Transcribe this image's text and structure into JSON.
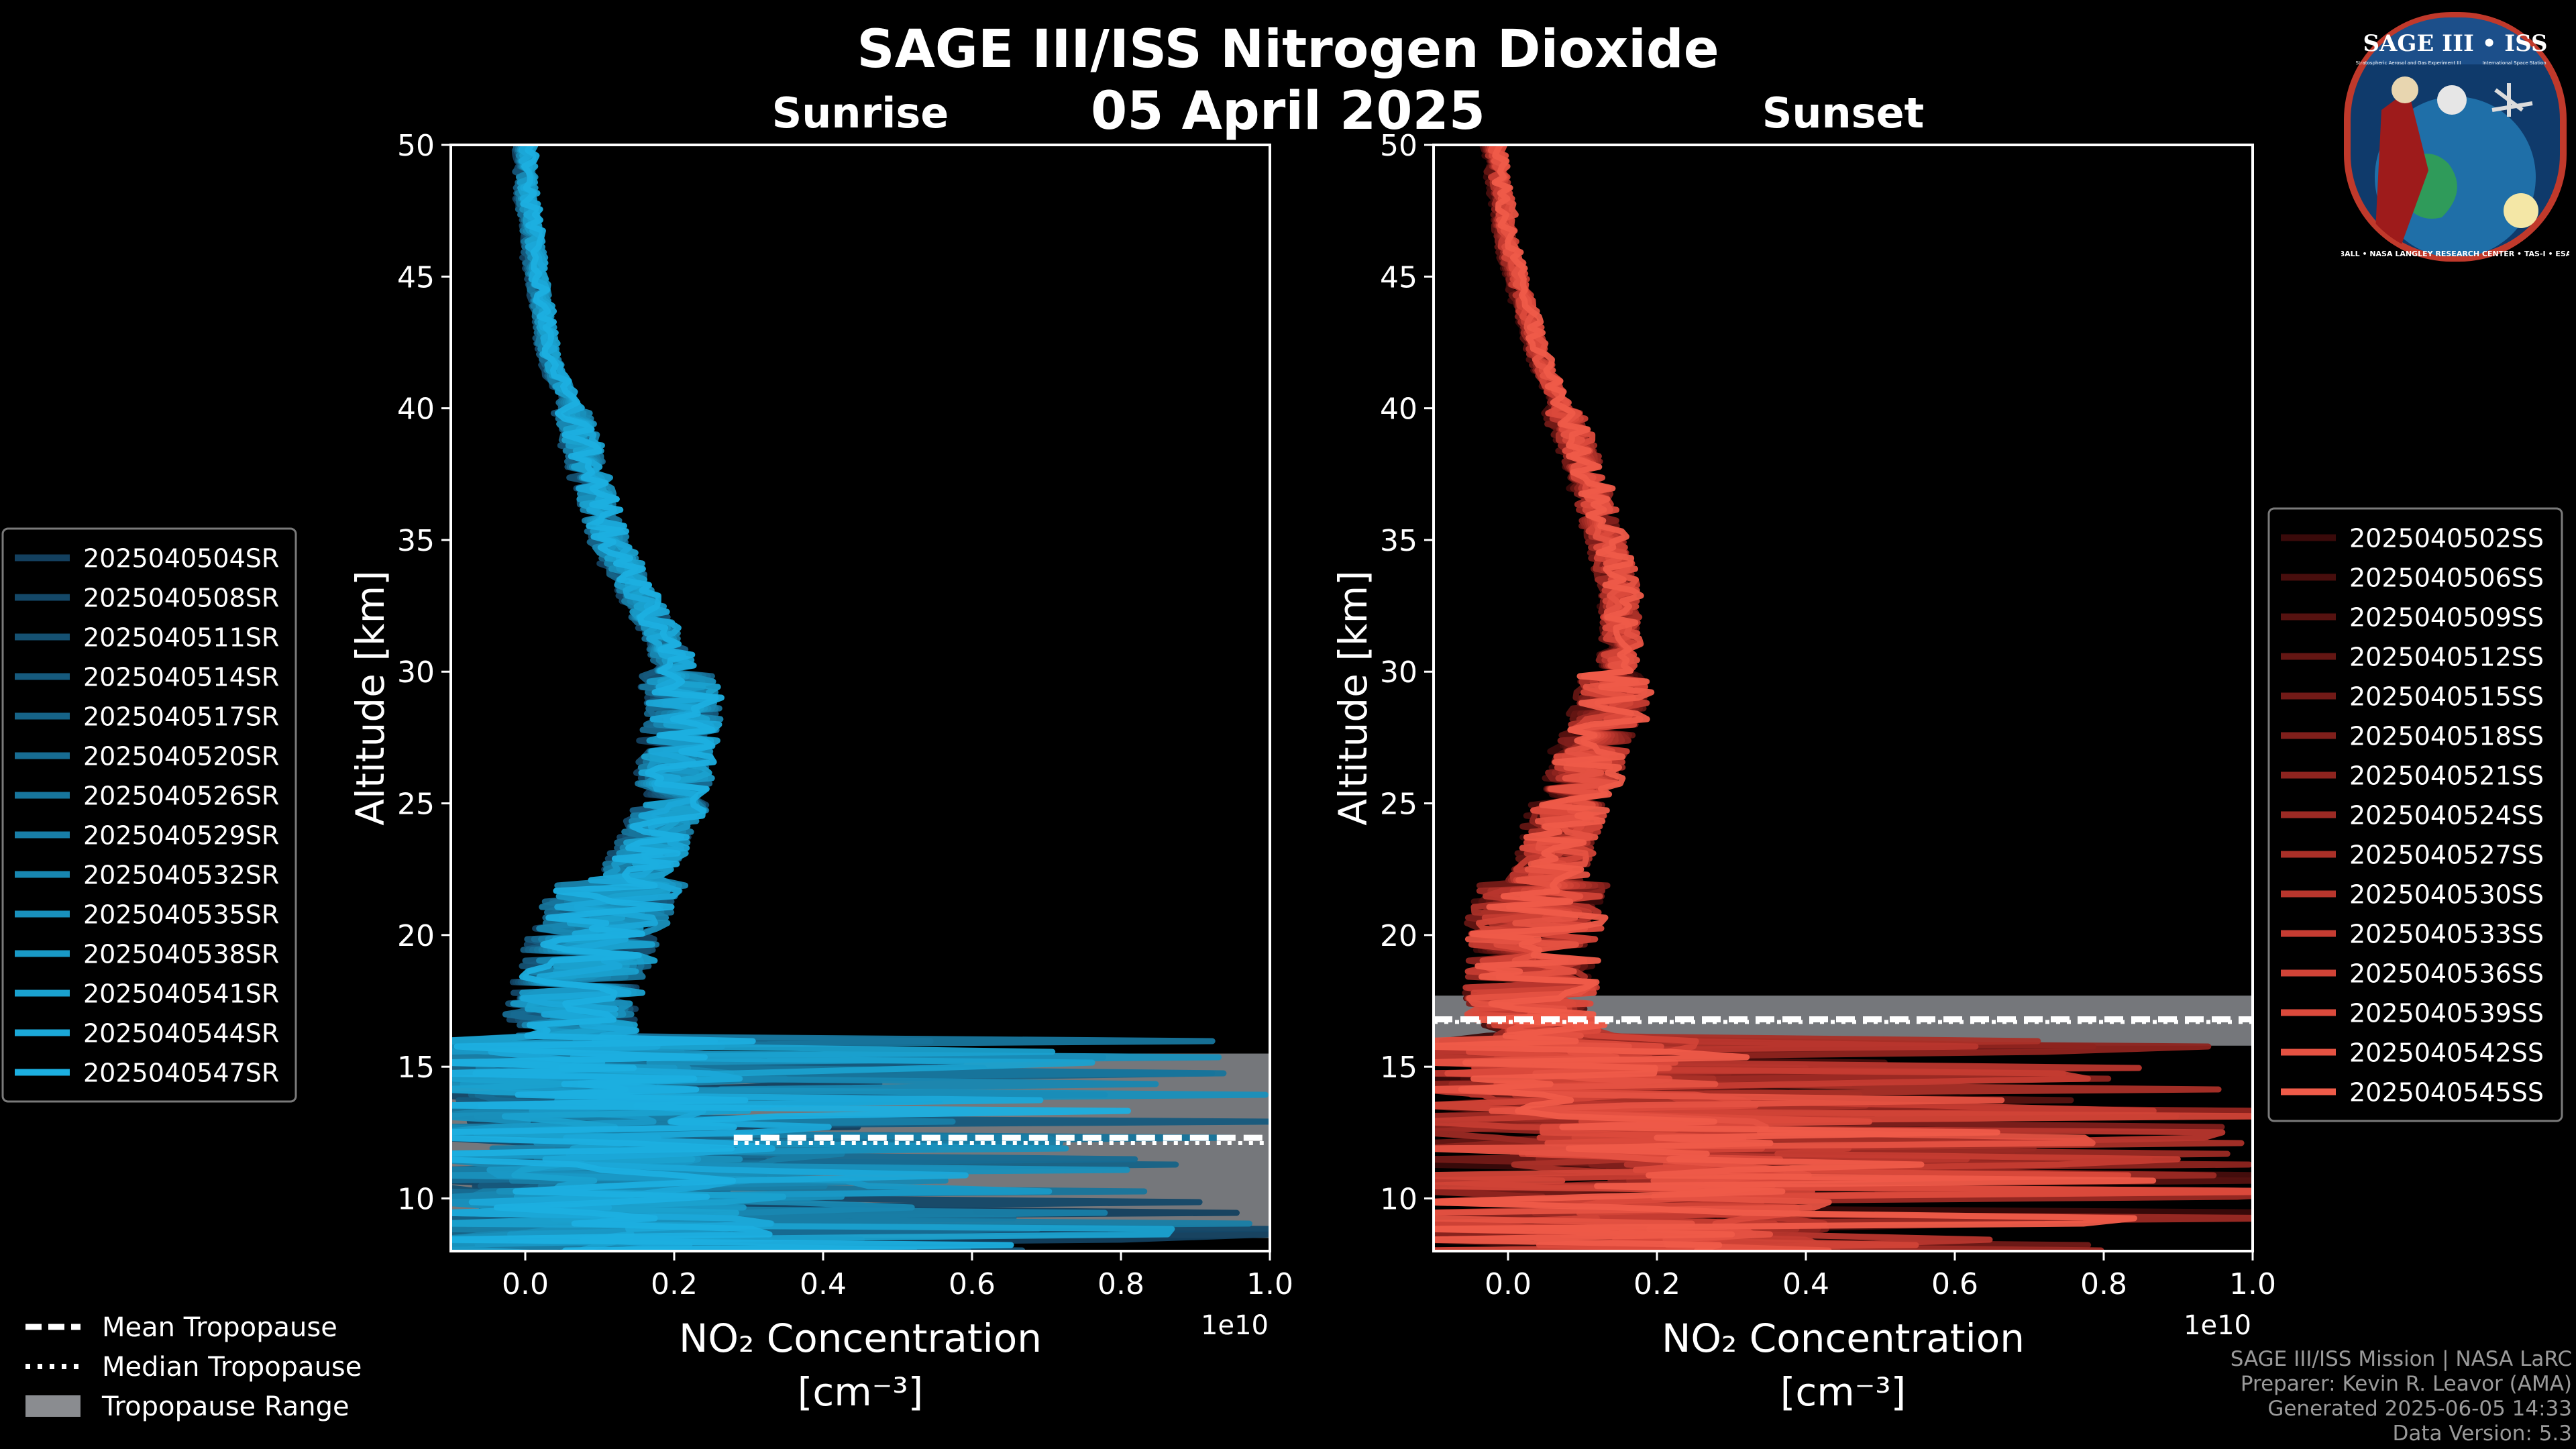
{
  "title": "SAGE III/ISS Nitrogen Dioxide",
  "date": "05 April 2025",
  "colors": {
    "background": "#000000",
    "sunrise_base": "#1b8fd6",
    "sunset_base": "#e2513f",
    "tropopause_range": "#8a8c90",
    "tropopause_line": "#ffffff"
  },
  "chart_data": [
    {
      "type": "line",
      "subtitle": "Sunrise",
      "xlabel": "NO₂ Concentration",
      "xlabel_units": "[cm⁻³]",
      "x_scale_label": "1e10",
      "ylabel": "Altitude [km]",
      "xlim": [
        -0.1,
        1.0
      ],
      "ylim": [
        8,
        50
      ],
      "xticks": [
        0.0,
        0.2,
        0.4,
        0.6,
        0.8,
        1.0
      ],
      "xtick_labels": [
        "0.0",
        "0.2",
        "0.4",
        "0.6",
        "0.8",
        "1.0"
      ],
      "yticks": [
        10,
        15,
        20,
        25,
        30,
        35,
        40,
        45,
        50
      ],
      "ytick_labels": [
        "10",
        "15",
        "20",
        "25",
        "30",
        "35",
        "40",
        "45",
        "50"
      ],
      "tropopause_range": [
        8.5,
        15.5
      ],
      "mean_tropopause": 12.3,
      "median_tropopause": 12.1,
      "tropopause_line_xstart": 0.28,
      "legend_position": "outside-left",
      "profile_shape": {
        "altitude": [
          9,
          10,
          11,
          12,
          13,
          14,
          15,
          16,
          17,
          18,
          19,
          20,
          21,
          22,
          23,
          24,
          25,
          26,
          27,
          28,
          29,
          30,
          31,
          32,
          33,
          34,
          35,
          36,
          37,
          38,
          40,
          42,
          44,
          46,
          48,
          50
        ],
        "mean_no2": [
          0.12,
          0.08,
          0.12,
          0.12,
          0.1,
          0.08,
          0.07,
          0.06,
          0.05,
          0.06,
          0.07,
          0.08,
          0.1,
          0.12,
          0.15,
          0.17,
          0.19,
          0.19,
          0.19,
          0.2,
          0.2,
          0.19,
          0.18,
          0.16,
          0.14,
          0.12,
          0.1,
          0.09,
          0.08,
          0.07,
          0.05,
          0.02,
          0.01,
          0.0,
          -0.01,
          -0.01
        ]
      },
      "series": [
        {
          "name": "2025040504SR",
          "color": "#13405f"
        },
        {
          "name": "2025040508SR",
          "color": "#144868"
        },
        {
          "name": "2025040511SR",
          "color": "#155172"
        },
        {
          "name": "2025040514SR",
          "color": "#165a7d"
        },
        {
          "name": "2025040517SR",
          "color": "#166387"
        },
        {
          "name": "2025040520SR",
          "color": "#176c92"
        },
        {
          "name": "2025040526SR",
          "color": "#17759c"
        },
        {
          "name": "2025040529SR",
          "color": "#187ea7"
        },
        {
          "name": "2025040532SR",
          "color": "#1887b1"
        },
        {
          "name": "2025040535SR",
          "color": "#1990bc"
        },
        {
          "name": "2025040538SR",
          "color": "#1999c6"
        },
        {
          "name": "2025040541SR",
          "color": "#1aa1cf"
        },
        {
          "name": "2025040544SR",
          "color": "#1ba8d8"
        },
        {
          "name": "2025040547SR",
          "color": "#1cafe0"
        }
      ]
    },
    {
      "type": "line",
      "subtitle": "Sunset",
      "xlabel": "NO₂ Concentration",
      "xlabel_units": "[cm⁻³]",
      "x_scale_label": "1e10",
      "ylabel": "Altitude [km]",
      "xlim": [
        -0.1,
        1.0
      ],
      "ylim": [
        8,
        50
      ],
      "xticks": [
        0.0,
        0.2,
        0.4,
        0.6,
        0.8,
        1.0
      ],
      "xtick_labels": [
        "0.0",
        "0.2",
        "0.4",
        "0.6",
        "0.8",
        "1.0"
      ],
      "yticks": [
        10,
        15,
        20,
        25,
        30,
        35,
        40,
        45,
        50
      ],
      "ytick_labels": [
        "10",
        "15",
        "20",
        "25",
        "30",
        "35",
        "40",
        "45",
        "50"
      ],
      "tropopause_range": [
        15.8,
        17.7
      ],
      "mean_tropopause": 16.8,
      "median_tropopause": 16.7,
      "tropopause_line_xstart": -0.1,
      "legend_position": "outside-right",
      "profile_shape": {
        "altitude": [
          9,
          10,
          11,
          12,
          13,
          14,
          15,
          16,
          17,
          18,
          19,
          20,
          21,
          22,
          23,
          24,
          25,
          26,
          27,
          28,
          29,
          30,
          31,
          32,
          33,
          34,
          35,
          36,
          37,
          38,
          40,
          42,
          44,
          46,
          48,
          50
        ],
        "mean_no2": [
          0.25,
          0.25,
          0.22,
          0.2,
          0.18,
          0.15,
          0.12,
          0.08,
          0.05,
          0.05,
          0.05,
          0.05,
          0.06,
          0.07,
          0.08,
          0.09,
          0.1,
          0.12,
          0.13,
          0.15,
          0.16,
          0.16,
          0.17,
          0.17,
          0.17,
          0.16,
          0.15,
          0.14,
          0.13,
          0.12,
          0.09,
          0.06,
          0.04,
          0.02,
          0.01,
          0.0
        ]
      },
      "series": [
        {
          "name": "2025040502SS",
          "color": "#3a0a0a"
        },
        {
          "name": "2025040506SS",
          "color": "#480e0d"
        },
        {
          "name": "2025040509SS",
          "color": "#561210"
        },
        {
          "name": "2025040512SS",
          "color": "#641613"
        },
        {
          "name": "2025040515SS",
          "color": "#721a17"
        },
        {
          "name": "2025040518SS",
          "color": "#801f1b"
        },
        {
          "name": "2025040521SS",
          "color": "#8e241f"
        },
        {
          "name": "2025040524SS",
          "color": "#9c2a24"
        },
        {
          "name": "2025040527SS",
          "color": "#aa3028"
        },
        {
          "name": "2025040530SS",
          "color": "#b8362d"
        },
        {
          "name": "2025040533SS",
          "color": "#c53c32"
        },
        {
          "name": "2025040536SS",
          "color": "#d14337"
        },
        {
          "name": "2025040539SS",
          "color": "#db4a3c"
        },
        {
          "name": "2025040542SS",
          "color": "#e55242"
        },
        {
          "name": "2025040545SS",
          "color": "#ef5b49"
        }
      ]
    }
  ],
  "tropopause_legend": [
    {
      "label": "Mean Tropopause",
      "icon": "dashed-line"
    },
    {
      "label": "Median Tropopause",
      "icon": "dotted-line"
    },
    {
      "label": "Tropopause Range",
      "icon": "gray-patch"
    }
  ],
  "logo": {
    "name": "SAGE III • ISS",
    "caption_left": "Stratospheric Aerosol and Gas Experiment III",
    "caption_right": "International Space Station",
    "ring_text": "BALL • NASA LANGLEY RESEARCH CENTER • TAS-I • ESA"
  },
  "footer": {
    "line1": "SAGE III/ISS Mission | NASA LaRC",
    "line2": "Preparer: Kevin R. Leavor (AMA)",
    "line3": "Generated 2025-06-05 14:33",
    "line4": "Data Version: 5.3"
  }
}
